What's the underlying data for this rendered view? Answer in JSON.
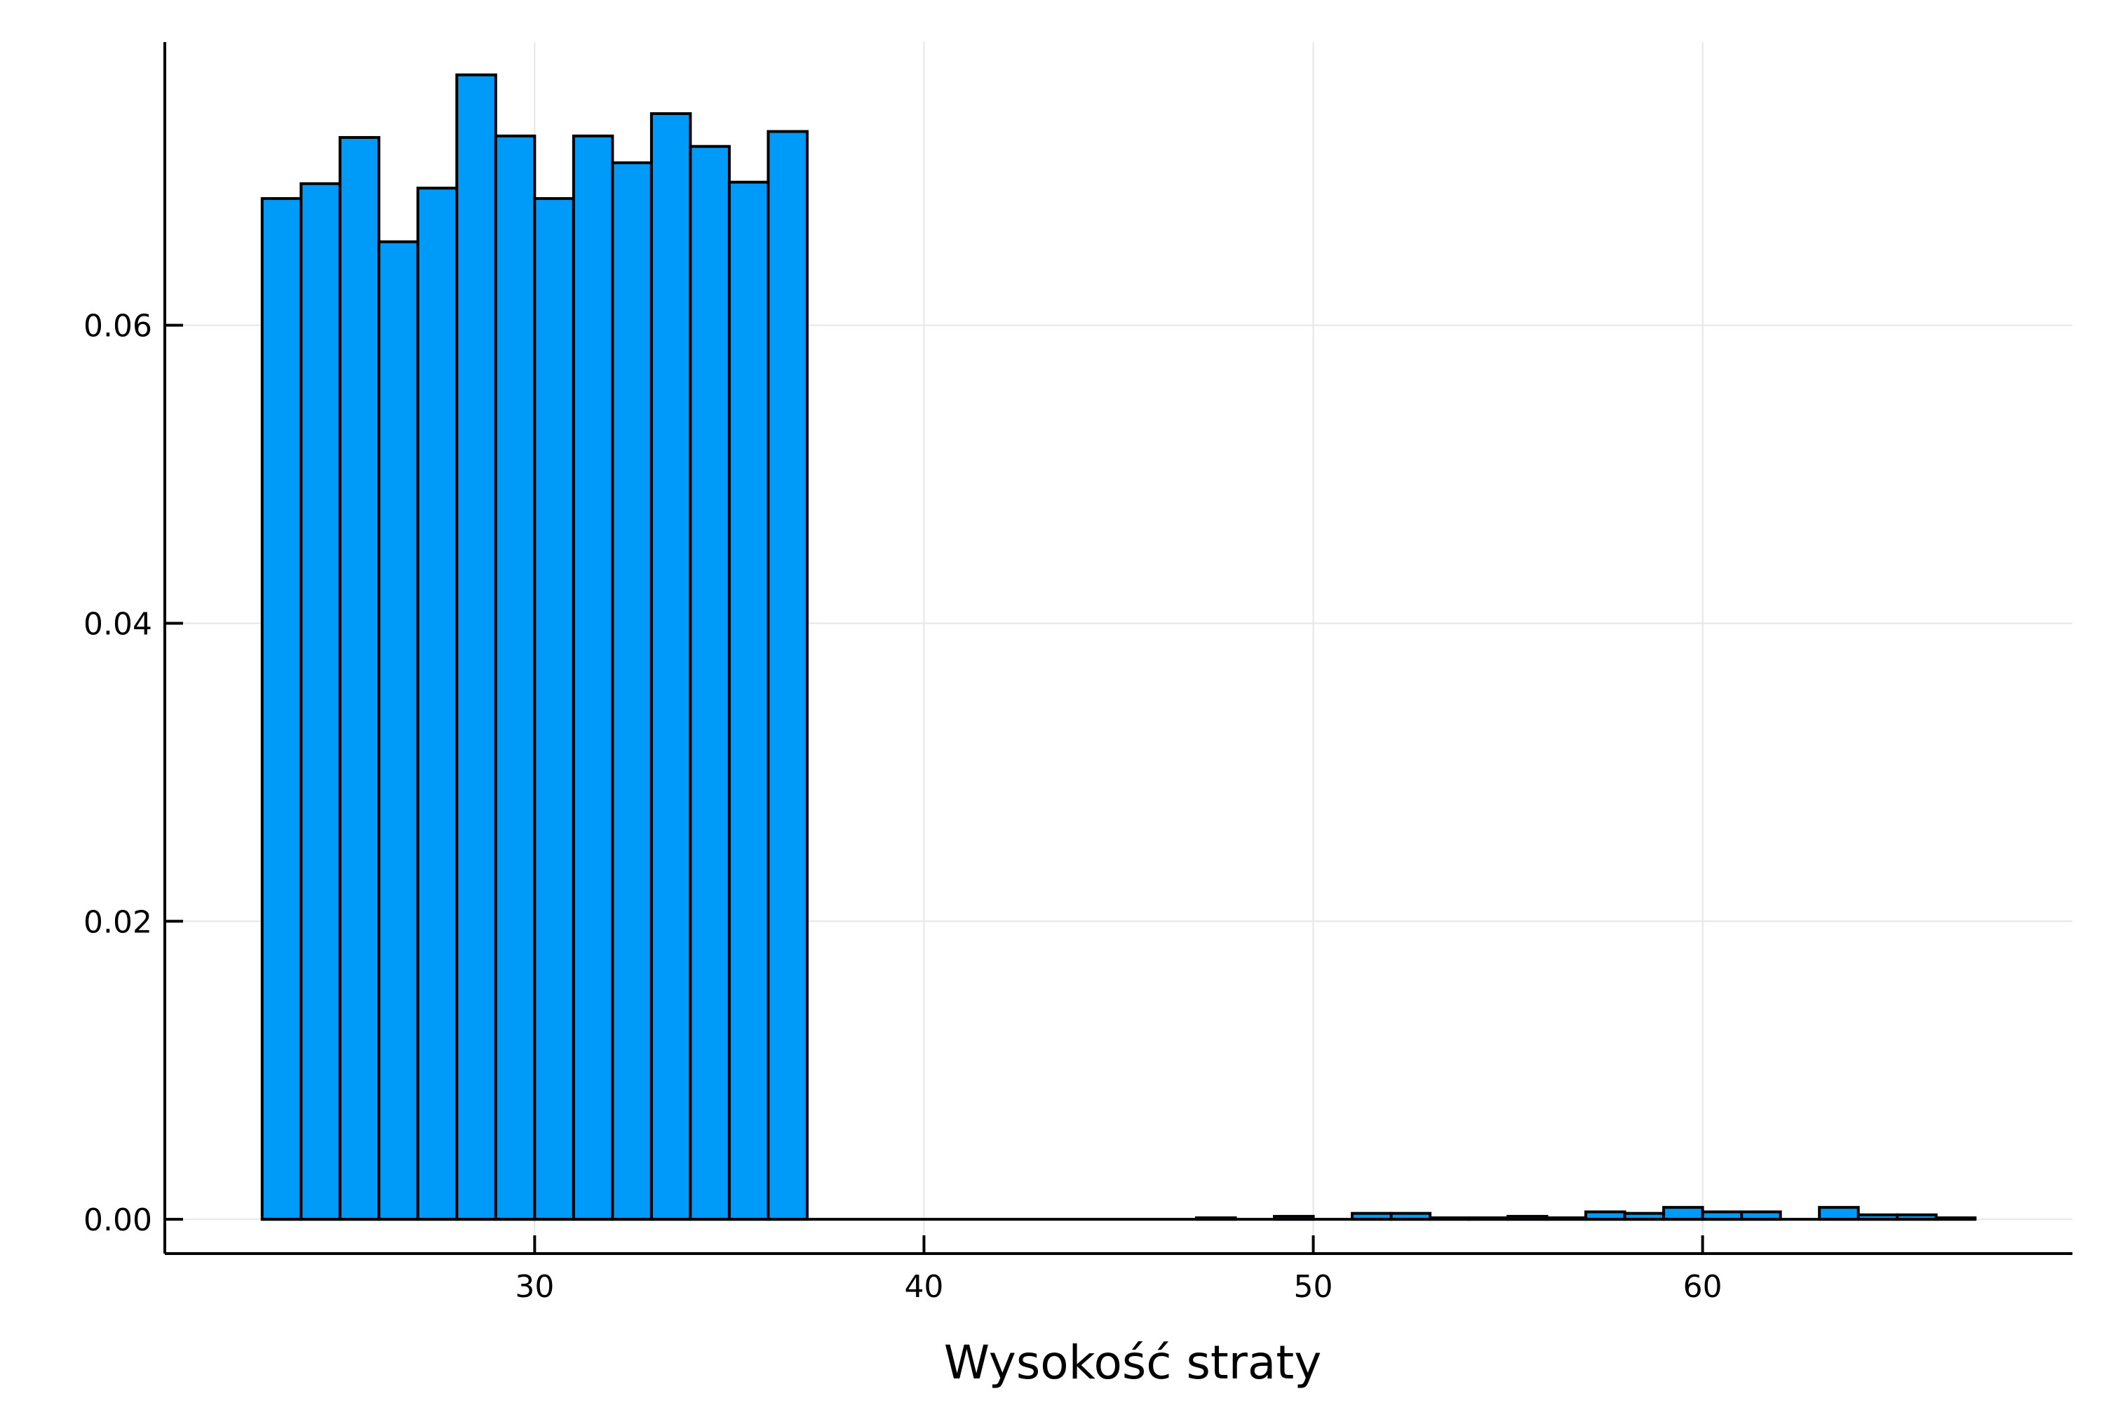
{
  "chart_data": {
    "type": "bar",
    "xlabel": "Wysokość straty",
    "ylabel": "",
    "xlim": [
      20.5,
      69.5
    ],
    "ylim": [
      -0.0023,
      0.079
    ],
    "x_ticks": [
      30,
      40,
      50,
      60
    ],
    "x_tick_labels": [
      "30",
      "40",
      "50",
      "60"
    ],
    "y_ticks": [
      0.0,
      0.02,
      0.04,
      0.06
    ],
    "y_tick_labels": [
      "0.00",
      "0.02",
      "0.04",
      "0.06"
    ],
    "grid": true,
    "legend": "none",
    "bar_color": "#009af9",
    "bin_width": 1,
    "bins": [
      {
        "x0": 23,
        "x1": 24,
        "value": 0.0685
      },
      {
        "x0": 24,
        "x1": 25,
        "value": 0.0695
      },
      {
        "x0": 25,
        "x1": 26,
        "value": 0.0726
      },
      {
        "x0": 26,
        "x1": 27,
        "value": 0.0656
      },
      {
        "x0": 27,
        "x1": 28,
        "value": 0.0692
      },
      {
        "x0": 28,
        "x1": 29,
        "value": 0.0768
      },
      {
        "x0": 29,
        "x1": 30,
        "value": 0.0727
      },
      {
        "x0": 30,
        "x1": 31,
        "value": 0.0685
      },
      {
        "x0": 31,
        "x1": 32,
        "value": 0.0727
      },
      {
        "x0": 32,
        "x1": 33,
        "value": 0.0709
      },
      {
        "x0": 33,
        "x1": 34,
        "value": 0.0742
      },
      {
        "x0": 34,
        "x1": 35,
        "value": 0.072
      },
      {
        "x0": 35,
        "x1": 36,
        "value": 0.0696
      },
      {
        "x0": 36,
        "x1": 37,
        "value": 0.073
      },
      {
        "x0": 47,
        "x1": 48,
        "value": 0.0001
      },
      {
        "x0": 49,
        "x1": 50,
        "value": 0.0002
      },
      {
        "x0": 51,
        "x1": 52,
        "value": 0.0004
      },
      {
        "x0": 52,
        "x1": 53,
        "value": 0.0004
      },
      {
        "x0": 53,
        "x1": 54,
        "value": 0.0001
      },
      {
        "x0": 54,
        "x1": 55,
        "value": 0.0001
      },
      {
        "x0": 55,
        "x1": 56,
        "value": 0.0002
      },
      {
        "x0": 56,
        "x1": 57,
        "value": 0.0001
      },
      {
        "x0": 57,
        "x1": 58,
        "value": 0.0005
      },
      {
        "x0": 58,
        "x1": 59,
        "value": 0.0004
      },
      {
        "x0": 59,
        "x1": 60,
        "value": 0.0008
      },
      {
        "x0": 60,
        "x1": 61,
        "value": 0.0005
      },
      {
        "x0": 61,
        "x1": 62,
        "value": 0.0005
      },
      {
        "x0": 63,
        "x1": 64,
        "value": 0.0008
      },
      {
        "x0": 64,
        "x1": 65,
        "value": 0.0003
      },
      {
        "x0": 65,
        "x1": 66,
        "value": 0.0003
      },
      {
        "x0": 66,
        "x1": 67,
        "value": 0.0001
      }
    ]
  }
}
